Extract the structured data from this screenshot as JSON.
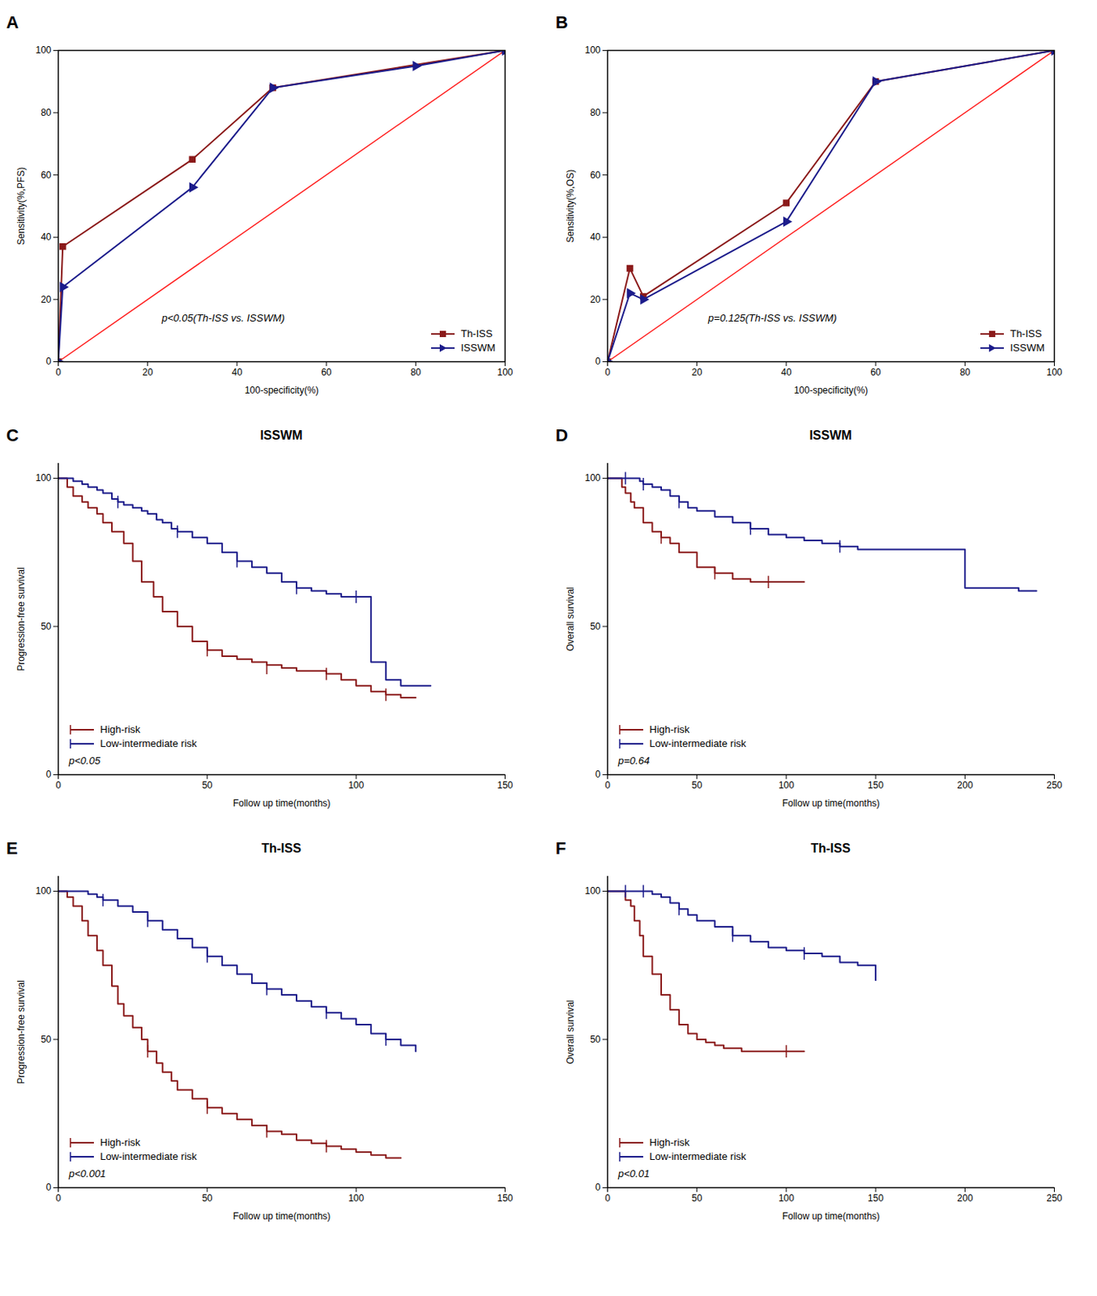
{
  "chart_data": [
    {
      "type": "line",
      "panel_label": "A",
      "xlabel": "100-specificity(%)",
      "ylabel": "Sensitivity(%,PFS)",
      "xlim": [
        0,
        100
      ],
      "ylim": [
        0,
        100
      ],
      "xticks": [
        0,
        20,
        40,
        60,
        80,
        100
      ],
      "yticks": [
        0,
        20,
        40,
        60,
        80,
        100
      ],
      "grid": false,
      "legend": "lower right",
      "annotations": [
        "p<0.05(Th-ISS vs. ISSWM)"
      ],
      "series": [
        {
          "name": "Th-ISS",
          "color": "#8B1A1A",
          "marker": "square",
          "x": [
            0,
            1,
            30,
            48,
            100
          ],
          "values": [
            0,
            37,
            65,
            88,
            100
          ]
        },
        {
          "name": "ISSWM",
          "color": "#1C1C8B",
          "marker": "triangle-right",
          "x": [
            0,
            1,
            30,
            48,
            80,
            100
          ],
          "values": [
            0,
            24,
            56,
            88,
            95,
            100
          ]
        },
        {
          "color": "#FF2020",
          "x": [
            0,
            100
          ],
          "values": [
            0,
            100
          ]
        }
      ]
    },
    {
      "type": "line",
      "panel_label": "B",
      "xlabel": "100-specificity(%)",
      "ylabel": "Sensitivity(%,OS)",
      "xlim": [
        0,
        100
      ],
      "ylim": [
        0,
        100
      ],
      "xticks": [
        0,
        20,
        40,
        60,
        80,
        100
      ],
      "yticks": [
        0,
        20,
        40,
        60,
        80,
        100
      ],
      "grid": false,
      "legend": "lower right",
      "annotations": [
        "p=0.125(Th-ISS vs. ISSWM)"
      ],
      "series": [
        {
          "name": "Th-ISS",
          "color": "#8B1A1A",
          "marker": "square",
          "x": [
            0,
            5,
            8,
            40,
            60,
            100
          ],
          "values": [
            0,
            30,
            21,
            51,
            90,
            100
          ]
        },
        {
          "name": "ISSWM",
          "color": "#1C1C8B",
          "marker": "triangle-right",
          "x": [
            0,
            5,
            8,
            40,
            60,
            100
          ],
          "values": [
            0,
            22,
            20,
            45,
            90,
            100
          ]
        },
        {
          "color": "#FF2020",
          "x": [
            0,
            100
          ],
          "values": [
            0,
            100
          ]
        }
      ]
    },
    {
      "type": "step",
      "panel_label": "C",
      "title": "ISSWM",
      "xlabel": "Follow up time(months)",
      "ylabel": "Progression-free survival",
      "xlim": [
        0,
        150
      ],
      "ylim": [
        0,
        105
      ],
      "xticks": [
        0,
        50,
        100,
        150
      ],
      "yticks": [
        0,
        50,
        100
      ],
      "grid": false,
      "legend": "lower left",
      "annotations": [
        "p<0.05"
      ],
      "series": [
        {
          "name": "High-risk",
          "color": "#8B1A1A",
          "marker": "tick",
          "x": [
            0,
            3,
            5,
            8,
            10,
            13,
            15,
            18,
            22,
            25,
            28,
            32,
            35,
            40,
            45,
            50,
            55,
            60,
            65,
            70,
            75,
            80,
            85,
            90,
            95,
            100,
            105,
            110,
            115,
            120
          ],
          "values": [
            100,
            97,
            94,
            92,
            90,
            88,
            85,
            82,
            78,
            72,
            65,
            60,
            55,
            50,
            45,
            42,
            40,
            39,
            38,
            37,
            36,
            35,
            35,
            34,
            32,
            30,
            28,
            27,
            26,
            26
          ],
          "censored_x": [
            50,
            70,
            90,
            110
          ],
          "censored_values": [
            42,
            36,
            34,
            27
          ]
        },
        {
          "name": "Low-intermediate risk",
          "color": "#1C1C8B",
          "marker": "tick",
          "x": [
            0,
            3,
            5,
            8,
            10,
            13,
            15,
            18,
            20,
            22,
            25,
            28,
            30,
            33,
            35,
            38,
            40,
            45,
            50,
            55,
            60,
            65,
            70,
            75,
            80,
            85,
            90,
            95,
            100,
            105,
            110,
            115,
            120,
            125
          ],
          "values": [
            100,
            100,
            99,
            98,
            97,
            96,
            95,
            93,
            92,
            91,
            90,
            89,
            88,
            86,
            85,
            83,
            82,
            80,
            78,
            75,
            72,
            70,
            68,
            65,
            63,
            62,
            61,
            60,
            60,
            38,
            32,
            30,
            30,
            30
          ],
          "censored_x": [
            20,
            40,
            60,
            80,
            100
          ],
          "censored_values": [
            92,
            82,
            72,
            63,
            60
          ]
        }
      ]
    },
    {
      "type": "step",
      "panel_label": "D",
      "title": "ISSWM",
      "xlabel": "Follow up time(months)",
      "ylabel": "Overall survival",
      "xlim": [
        0,
        250
      ],
      "ylim": [
        0,
        105
      ],
      "xticks": [
        0,
        50,
        100,
        150,
        200,
        250
      ],
      "yticks": [
        0,
        50,
        100
      ],
      "grid": false,
      "legend": "lower left",
      "annotations": [
        "p=0.64"
      ],
      "series": [
        {
          "name": "High-risk",
          "color": "#8B1A1A",
          "marker": "tick",
          "x": [
            0,
            3,
            5,
            8,
            10,
            13,
            15,
            20,
            25,
            30,
            35,
            40,
            50,
            60,
            70,
            80,
            90,
            100,
            110
          ],
          "values": [
            100,
            100,
            100,
            97,
            95,
            92,
            90,
            85,
            82,
            80,
            78,
            75,
            70,
            68,
            66,
            65,
            65,
            65,
            65
          ],
          "censored_x": [
            30,
            60,
            90
          ],
          "censored_values": [
            80,
            68,
            65
          ]
        },
        {
          "name": "Low-intermediate risk",
          "color": "#1C1C8B",
          "marker": "tick",
          "x": [
            0,
            3,
            5,
            8,
            10,
            13,
            15,
            18,
            20,
            25,
            30,
            35,
            40,
            45,
            50,
            60,
            70,
            80,
            90,
            100,
            110,
            120,
            130,
            140,
            200,
            230,
            240
          ],
          "values": [
            100,
            100,
            100,
            100,
            100,
            100,
            100,
            99,
            98,
            97,
            96,
            94,
            92,
            90,
            89,
            87,
            85,
            83,
            81,
            80,
            79,
            78,
            77,
            76,
            63,
            62,
            62
          ],
          "censored_x": [
            10,
            20,
            40,
            80,
            130
          ],
          "censored_values": [
            100,
            98,
            92,
            83,
            77
          ]
        }
      ]
    },
    {
      "type": "step",
      "panel_label": "E",
      "title": "Th-ISS",
      "xlabel": "Follow up time(months)",
      "ylabel": "Progression-free survival",
      "xlim": [
        0,
        150
      ],
      "ylim": [
        0,
        105
      ],
      "xticks": [
        0,
        50,
        100,
        150
      ],
      "yticks": [
        0,
        50,
        100
      ],
      "grid": false,
      "legend": "lower left",
      "annotations": [
        "p<0.001"
      ],
      "series": [
        {
          "name": "High-risk",
          "color": "#8B1A1A",
          "marker": "tick",
          "x": [
            0,
            3,
            5,
            8,
            10,
            13,
            15,
            18,
            20,
            22,
            25,
            28,
            30,
            33,
            35,
            38,
            40,
            45,
            50,
            55,
            60,
            65,
            70,
            75,
            80,
            85,
            90,
            95,
            100,
            105,
            110,
            115
          ],
          "values": [
            100,
            98,
            95,
            90,
            85,
            80,
            75,
            68,
            62,
            58,
            54,
            50,
            46,
            42,
            39,
            36,
            33,
            30,
            27,
            25,
            23,
            21,
            19,
            18,
            16,
            15,
            14,
            13,
            12,
            11,
            10,
            10
          ],
          "censored_x": [
            30,
            50,
            70,
            90
          ],
          "censored_values": [
            46,
            27,
            19,
            14
          ]
        },
        {
          "name": "Low-intermediate risk",
          "color": "#1C1C8B",
          "marker": "tick",
          "x": [
            0,
            3,
            5,
            8,
            10,
            13,
            15,
            20,
            25,
            30,
            35,
            40,
            45,
            50,
            55,
            60,
            65,
            70,
            75,
            80,
            85,
            90,
            95,
            100,
            105,
            110,
            115,
            120
          ],
          "values": [
            100,
            100,
            100,
            100,
            99,
            98,
            97,
            95,
            93,
            90,
            87,
            84,
            81,
            78,
            75,
            72,
            69,
            67,
            65,
            63,
            61,
            59,
            57,
            55,
            52,
            50,
            48,
            46
          ],
          "censored_x": [
            15,
            30,
            50,
            70,
            90,
            110
          ],
          "censored_values": [
            97,
            90,
            78,
            67,
            59,
            50
          ]
        }
      ]
    },
    {
      "type": "step",
      "panel_label": "F",
      "title": "Th-ISS",
      "xlabel": "Follow up time(months)",
      "ylabel": "Overall survival",
      "xlim": [
        0,
        250
      ],
      "ylim": [
        0,
        105
      ],
      "xticks": [
        0,
        50,
        100,
        150,
        200,
        250
      ],
      "yticks": [
        0,
        50,
        100
      ],
      "grid": false,
      "legend": "lower left",
      "annotations": [
        "p<0.01"
      ],
      "series": [
        {
          "name": "High-risk",
          "color": "#8B1A1A",
          "marker": "tick",
          "x": [
            0,
            3,
            5,
            8,
            10,
            13,
            15,
            18,
            20,
            25,
            30,
            35,
            40,
            45,
            50,
            55,
            60,
            65,
            70,
            75,
            80,
            85,
            90,
            95,
            100,
            105,
            110
          ],
          "values": [
            100,
            100,
            100,
            100,
            97,
            95,
            90,
            85,
            78,
            72,
            65,
            60,
            55,
            52,
            50,
            49,
            48,
            47,
            47,
            46,
            46,
            46,
            46,
            46,
            46,
            46,
            46
          ],
          "censored_x": [
            100
          ],
          "censored_values": [
            46
          ]
        },
        {
          "name": "Low-intermediate risk",
          "color": "#1C1C8B",
          "marker": "tick",
          "x": [
            0,
            3,
            5,
            8,
            10,
            13,
            15,
            18,
            20,
            25,
            30,
            35,
            40,
            45,
            50,
            60,
            70,
            80,
            90,
            100,
            110,
            120,
            130,
            140,
            150
          ],
          "values": [
            100,
            100,
            100,
            100,
            100,
            100,
            100,
            100,
            100,
            99,
            98,
            96,
            94,
            92,
            90,
            88,
            85,
            83,
            81,
            80,
            79,
            78,
            76,
            75,
            70
          ],
          "censored_x": [
            10,
            20,
            40,
            70,
            110
          ],
          "censored_values": [
            100,
            100,
            94,
            85,
            79
          ]
        }
      ]
    }
  ]
}
